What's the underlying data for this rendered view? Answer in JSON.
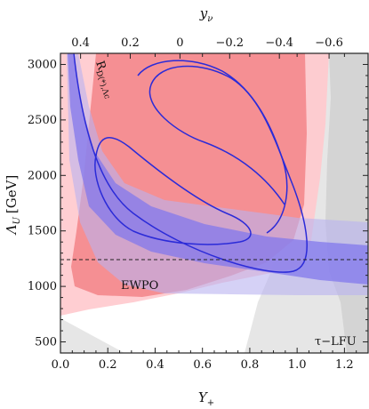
{
  "chart_data": {
    "type": "contour",
    "x_axis": {
      "label": "Y",
      "label_sub": "+",
      "range": [
        0.0,
        1.3
      ],
      "ticks": [
        0.0,
        0.2,
        0.4,
        0.6,
        0.8,
        1.0,
        1.2
      ],
      "tick_labels": [
        "0.0",
        "0.2",
        "0.4",
        "0.6",
        "0.8",
        "1.0",
        "1.2"
      ]
    },
    "top_axis": {
      "label": "y",
      "label_sub": "ν",
      "ticks": [
        0.4,
        0.2,
        0.0,
        -0.2,
        -0.4,
        -0.6
      ],
      "tick_labels": [
        "0.4",
        "0.2",
        "0",
        "−0.2",
        "−0.4",
        "−0.6"
      ],
      "tick_x_positions_in_Yplus": [
        0.085,
        0.295,
        0.505,
        0.715,
        0.925,
        1.135
      ]
    },
    "y_axis": {
      "label": "Λ",
      "label_sub": "U",
      "label_unit": "[GeV]",
      "range": [
        400,
        3100
      ],
      "ticks": [
        500,
        1000,
        1500,
        2000,
        2500,
        3000
      ],
      "tick_labels": [
        "500",
        "1000",
        "1500",
        "2000",
        "2500",
        "3000"
      ]
    },
    "regions": [
      {
        "name": "τ−LFU",
        "color_outer": "#e5e5e5",
        "color_inner": "#d6d6d6",
        "outer": [
          [
            0.0,
            510
          ],
          [
            0.25,
            380
          ],
          [
            0.25,
            380
          ],
          [
            0.0,
            380
          ]
        ],
        "outer_right": [
          [
            1.27,
            3100
          ],
          [
            1.22,
            2500
          ],
          [
            1.13,
            1600
          ],
          [
            1.08,
            1100
          ],
          [
            1.03,
            760
          ],
          [
            0.95,
            490
          ],
          [
            0.9,
            400
          ],
          [
            1.3,
            400
          ],
          [
            1.3,
            3100
          ]
        ],
        "inner_right": [
          [
            1.21,
            3100
          ],
          [
            1.18,
            2300
          ],
          [
            1.18,
            1500
          ],
          [
            1.2,
            1100
          ],
          [
            1.22,
            900
          ],
          [
            1.22,
            400
          ],
          [
            1.3,
            400
          ],
          [
            1.3,
            3100
          ]
        ]
      },
      {
        "name": "R_D(*),Λc",
        "color_2sigma": "#cac4f2",
        "color_1sigma": "#9b8ef0",
        "band_2sigma": {
          "upper": [
            [
              0.1,
              3100
            ],
            [
              0.15,
              2700
            ],
            [
              0.2,
              2300
            ],
            [
              0.3,
              2050
            ],
            [
              0.5,
              1900
            ],
            [
              0.8,
              1820
            ],
            [
              1.1,
              1750
            ],
            [
              1.3,
              1720
            ]
          ],
          "lower": [
            [
              0.035,
              3100
            ],
            [
              0.05,
              2500
            ],
            [
              0.08,
              2000
            ],
            [
              0.13,
              1500
            ],
            [
              0.2,
              1200
            ],
            [
              0.3,
              1030
            ],
            [
              0.5,
              970
            ],
            [
              0.8,
              960
            ],
            [
              1.1,
              960
            ],
            [
              1.3,
              960
            ]
          ]
        },
        "band_1sigma": {
          "upper": [
            [
              0.09,
              3100
            ],
            [
              0.12,
              2700
            ],
            [
              0.17,
              2300
            ],
            [
              0.25,
              2000
            ],
            [
              0.4,
              1760
            ],
            [
              0.6,
              1620
            ],
            [
              0.9,
              1520
            ],
            [
              1.1,
              1470
            ],
            [
              1.3,
              1440
            ]
          ],
          "lower": [
            [
              0.045,
              3100
            ],
            [
              0.06,
              2600
            ],
            [
              0.1,
              2000
            ],
            [
              0.16,
              1600
            ],
            [
              0.25,
              1380
            ],
            [
              0.4,
              1240
            ],
            [
              0.6,
              1150
            ],
            [
              0.9,
              1080
            ],
            [
              1.1,
              1000
            ],
            [
              1.3,
              980
            ]
          ]
        }
      },
      {
        "name": "EWPO",
        "color_2sigma": "#ffc4c8",
        "color_1sigma": "#f58a8e",
        "outline_color": "#3b3bd9"
      }
    ],
    "reference_line": {
      "y": 1270,
      "style": "dashed"
    },
    "annotations": [
      {
        "text": "EWPO",
        "x": 0.3,
        "y": 1030
      },
      {
        "text": "τ−LFU",
        "x": 1.14,
        "y": 500
      },
      {
        "text": "R",
        "sub": "D(*),Λc",
        "x": 0.17,
        "y": 2650,
        "rotated": true
      }
    ]
  }
}
